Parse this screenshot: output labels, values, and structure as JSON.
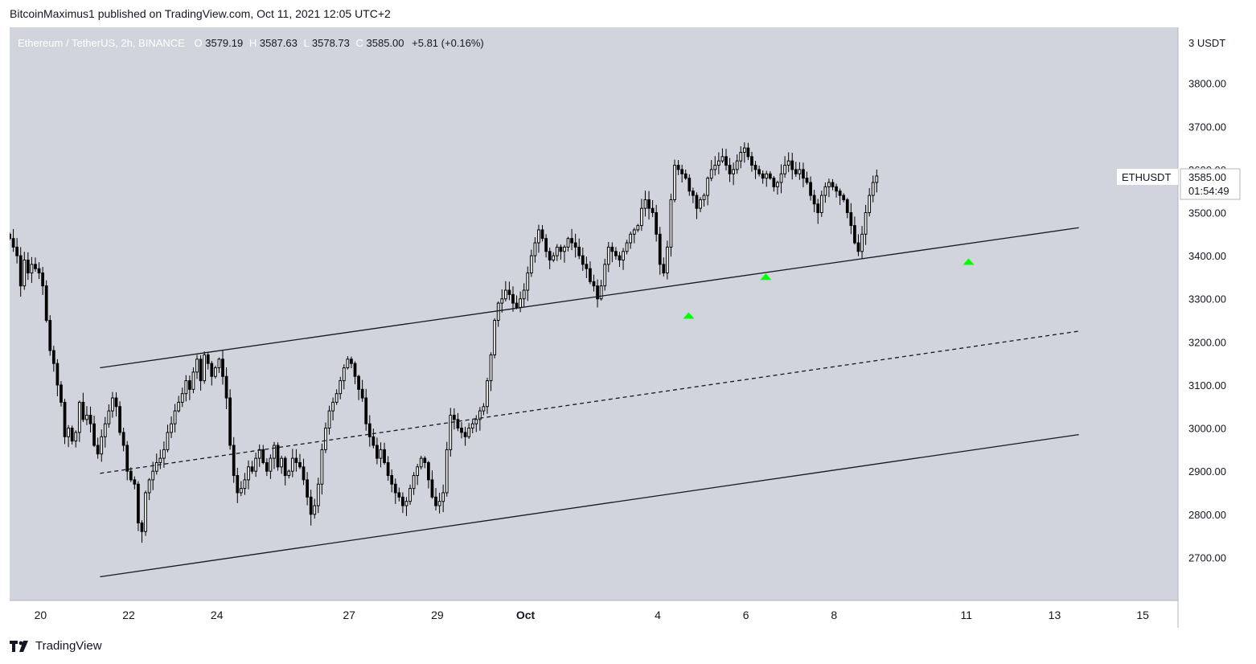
{
  "header": {
    "published_text": "BitcoinMaximus1 published on TradingView.com, Oct 11, 2021 12:05 UTC+2"
  },
  "legend": {
    "symbol": "Ethereum / TetherUS, 2h, BINANCE",
    "o_label": "O",
    "o_value": "3579.19",
    "h_label": "H",
    "h_value": "3587.63",
    "l_label": "L",
    "l_value": "3578.73",
    "c_label": "C",
    "c_value": "3585.00",
    "change": "+5.81 (+0.16%)"
  },
  "price_tag": {
    "ticker": "ETHUSDT",
    "price": "3585.00",
    "countdown": "01:54:49"
  },
  "axis_header": "3 USDT",
  "footer": {
    "brand": "TradingView"
  },
  "colors": {
    "background": "#d1d4dc",
    "candle": "#000000",
    "marker": "#00ff00",
    "axis_bg": "#ffffff"
  },
  "chart_data": {
    "type": "candlestick",
    "y_ticks": [
      2700,
      2800,
      2900,
      3000,
      3100,
      3200,
      3300,
      3400,
      3500,
      3600,
      3700,
      3800
    ],
    "y_tick_labels": [
      "2700.00",
      "2800.00",
      "2900.00",
      "3000.00",
      "3100.00",
      "3200.00",
      "3300.00",
      "3400.00",
      "3500.00",
      "3600.00",
      "3700.00",
      "3800.00"
    ],
    "ylim": [
      2600,
      3930
    ],
    "x_axis_unit": "days from Sep 20 00:00",
    "xlim": [
      -0.7,
      25.8
    ],
    "x_ticks": [
      {
        "day": 0,
        "label": "20"
      },
      {
        "day": 2,
        "label": "22"
      },
      {
        "day": 4,
        "label": "24"
      },
      {
        "day": 7,
        "label": "27"
      },
      {
        "day": 9,
        "label": "29"
      },
      {
        "day": 11,
        "label": "Oct"
      },
      {
        "day": 14,
        "label": "4"
      },
      {
        "day": 16,
        "label": "6"
      },
      {
        "day": 18,
        "label": "8"
      },
      {
        "day": 21,
        "label": "11"
      },
      {
        "day": 23,
        "label": "13"
      },
      {
        "day": 25,
        "label": "15"
      }
    ],
    "bar_hours": 2,
    "closes_start_day": -0.7,
    "closes": [
      3440,
      3420,
      3400,
      3330,
      3390,
      3360,
      3380,
      3370,
      3360,
      3330,
      3250,
      3180,
      3150,
      3100,
      3060,
      2980,
      3000,
      2970,
      2990,
      3060,
      3020,
      3030,
      3010,
      2960,
      2940,
      2980,
      3010,
      3040,
      3070,
      3050,
      2990,
      2960,
      2900,
      2880,
      2870,
      2780,
      2760,
      2850,
      2880,
      2900,
      2920,
      2930,
      2950,
      2990,
      3010,
      3040,
      3060,
      3080,
      3110,
      3090,
      3130,
      3160,
      3110,
      3170,
      3150,
      3120,
      3140,
      3160,
      3120,
      3070,
      2960,
      2890,
      2850,
      2860,
      2880,
      2910,
      2900,
      2930,
      2950,
      2920,
      2900,
      2930,
      2960,
      2910,
      2930,
      2890,
      2900,
      2930,
      2920,
      2910,
      2880,
      2840,
      2800,
      2820,
      2870,
      2950,
      3000,
      3040,
      3060,
      3080,
      3110,
      3140,
      3160,
      3150,
      3120,
      3090,
      3070,
      3010,
      2980,
      2960,
      2930,
      2950,
      2920,
      2890,
      2870,
      2850,
      2840,
      2820,
      2830,
      2860,
      2890,
      2910,
      2930,
      2920,
      2880,
      2840,
      2820,
      2830,
      2850,
      2950,
      3030,
      3020,
      3000,
      2990,
      2980,
      3000,
      3010,
      3020,
      3040,
      3050,
      3110,
      3170,
      3250,
      3290,
      3300,
      3320,
      3310,
      3290,
      3280,
      3300,
      3320,
      3360,
      3400,
      3430,
      3460,
      3440,
      3410,
      3390,
      3400,
      3420,
      3410,
      3420,
      3440,
      3430,
      3420,
      3400,
      3380,
      3370,
      3340,
      3330,
      3300,
      3330,
      3380,
      3420,
      3410,
      3400,
      3390,
      3410,
      3430,
      3450,
      3460,
      3470,
      3510,
      3530,
      3510,
      3500,
      3450,
      3380,
      3360,
      3420,
      3530,
      3610,
      3600,
      3590,
      3580,
      3550,
      3540,
      3510,
      3530,
      3540,
      3580,
      3600,
      3610,
      3620,
      3630,
      3610,
      3590,
      3600,
      3620,
      3640,
      3650,
      3630,
      3610,
      3600,
      3590,
      3580,
      3590,
      3580,
      3560,
      3570,
      3590,
      3610,
      3620,
      3600,
      3590,
      3600,
      3580,
      3570,
      3540,
      3520,
      3500,
      3540,
      3560,
      3570,
      3560,
      3550,
      3540,
      3530,
      3500,
      3470,
      3430,
      3410,
      3450,
      3500,
      3540,
      3570,
      3585
    ],
    "markers": [
      {
        "day": 14.7,
        "price": 3265
      },
      {
        "day": 16.45,
        "price": 3355
      },
      {
        "day": 21.05,
        "price": 3390
      }
    ],
    "channel_lines": [
      {
        "name": "upper",
        "style": "solid",
        "points": [
          [
            1.35,
            3140
          ],
          [
            23.55,
            3465
          ]
        ]
      },
      {
        "name": "middle",
        "style": "dashed",
        "points": [
          [
            1.35,
            2895
          ],
          [
            23.55,
            3225
          ]
        ]
      },
      {
        "name": "lower",
        "style": "solid",
        "points": [
          [
            1.35,
            2655
          ],
          [
            23.55,
            2985
          ]
        ]
      }
    ]
  }
}
